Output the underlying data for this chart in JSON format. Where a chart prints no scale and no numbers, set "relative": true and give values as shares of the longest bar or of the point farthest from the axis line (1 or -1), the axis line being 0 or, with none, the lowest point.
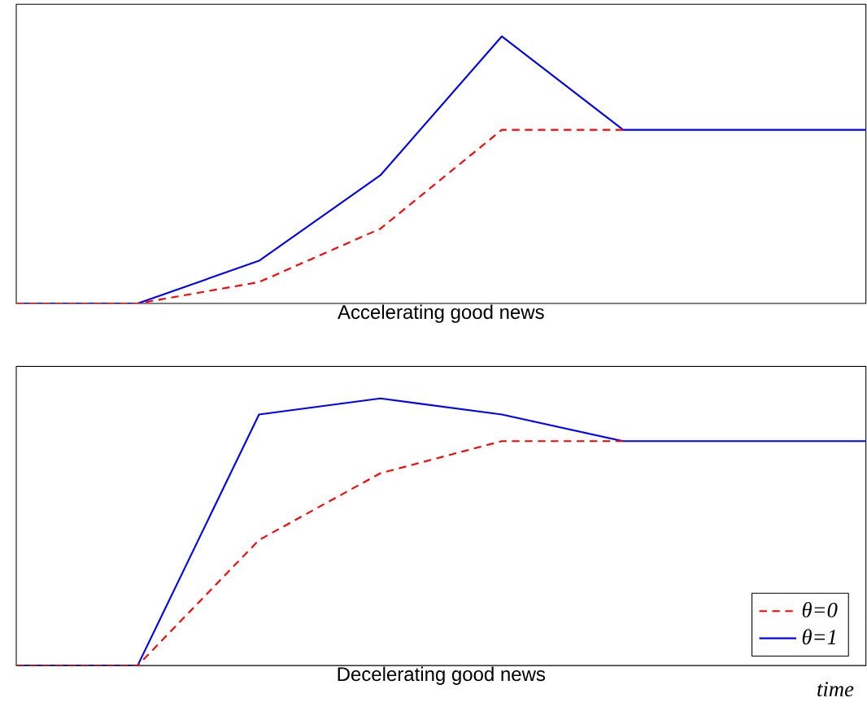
{
  "chart_data": [
    {
      "type": "line",
      "title": "Accelerating good news",
      "relative": true,
      "categories": [
        null,
        null,
        null,
        null,
        null,
        null,
        null,
        null
      ],
      "series": [
        {
          "color": "#ff0000",
          "line_style": "dashed",
          "values": [
            0,
            0,
            0.08,
            0.28,
            0.65,
            0.65,
            null,
            null
          ]
        },
        {
          "color": "#0000ff",
          "line_style": "solid",
          "values": [
            0,
            0,
            0.16,
            0.48,
            1,
            0.65,
            0.65,
            0.65
          ]
        }
      ]
    },
    {
      "type": "line",
      "title": "Decelerating good news",
      "xlabel": "time",
      "relative": true,
      "legend": "bottom right",
      "categories": [
        null,
        null,
        null,
        null,
        null,
        null,
        null,
        null
      ],
      "series": [
        {
          "name": "θ=0",
          "color": "#ff0000",
          "line_style": "dashed",
          "values": [
            0,
            0,
            0.47,
            0.72,
            0.84,
            0.84,
            null,
            null
          ]
        },
        {
          "name": "θ=1",
          "color": "#0000ff",
          "line_style": "solid",
          "values": [
            0,
            0,
            0.94,
            1,
            0.94,
            0.84,
            0.84,
            0.84
          ]
        }
      ]
    }
  ]
}
